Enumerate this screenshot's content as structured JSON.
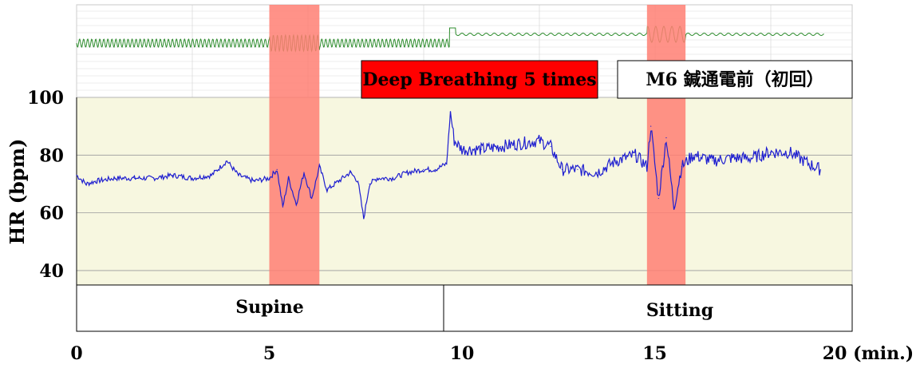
{
  "chart_data": {
    "type": "line",
    "ylabel": "HR (bpm)",
    "xlabel": "",
    "xlim": [
      0,
      20
    ],
    "ylim": [
      35,
      100
    ],
    "y_ticks": [
      40,
      60,
      80,
      100
    ],
    "x_ticks": [
      {
        "value": 0,
        "label": "0"
      },
      {
        "value": 5,
        "label": "5"
      },
      {
        "value": 10,
        "label": "10"
      },
      {
        "value": 15,
        "label": "15"
      },
      {
        "value": 20,
        "label": "20 (min.)"
      }
    ],
    "background_color": "#f7f7e0",
    "line_color": "#1f1fd0",
    "highlight_color": "#ff7f73",
    "deep_breathing_periods": [
      [
        5.0,
        6.3
      ],
      [
        14.8,
        15.8
      ]
    ],
    "series": [
      {
        "x": [
          0,
          0.25,
          0.5,
          1.0,
          1.5,
          2.0,
          2.5,
          3.0,
          3.5,
          3.9,
          4.2,
          4.6,
          5.0,
          5.2,
          5.35,
          5.5,
          5.7,
          5.9,
          6.1,
          6.3,
          6.5,
          6.8,
          7.1,
          7.3,
          7.45,
          7.6,
          7.8,
          8.2,
          8.6,
          9.0,
          9.3,
          9.6,
          9.7,
          9.8,
          10.0,
          10.5,
          11.0,
          11.5,
          12.0,
          12.3,
          12.6,
          13.0,
          13.5,
          14.0,
          14.5,
          14.8,
          14.9,
          15.1,
          15.3,
          15.5,
          15.7,
          16.0,
          16.5,
          17.0,
          17.5,
          18.0,
          18.5,
          19.0,
          19.3
        ],
        "y": [
          73,
          70,
          71,
          72,
          72,
          72,
          73,
          72,
          73,
          78,
          73,
          71,
          72,
          75,
          62,
          72,
          63,
          74,
          65,
          76,
          68,
          71,
          74,
          71,
          58,
          70,
          72,
          72,
          74,
          75,
          75,
          77,
          95,
          85,
          82,
          82,
          83,
          84,
          85,
          83,
          75,
          75,
          74,
          78,
          80,
          76,
          90,
          65,
          86,
          62,
          76,
          80,
          78,
          79,
          79,
          81,
          81,
          77,
          75
        ]
      }
    ],
    "ecg_color": "#2d8c2d"
  },
  "annotations": {
    "deep_breathing_label": "Deep Breathing 5 times",
    "m6_label": "M6 鍼通電前（初回）"
  },
  "posture": {
    "supine_label": "Supine",
    "sitting_label": "Sitting"
  }
}
